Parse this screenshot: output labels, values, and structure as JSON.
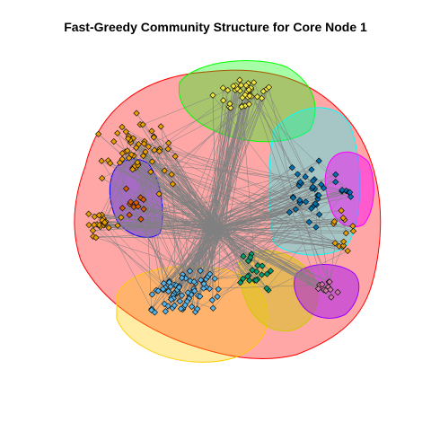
{
  "title": "Fast-Greedy Community Structure for Core Node 1",
  "chart_data": {
    "type": "network",
    "layout": "force-directed",
    "edge_color": "#808080",
    "node_border_color": "#000000",
    "communities": [
      {
        "id": "orange",
        "hull_fill": "#FF0000",
        "node_fill": "#E69F00"
      },
      {
        "id": "green",
        "hull_fill": "#00FF00",
        "node_fill": "#F0E442"
      },
      {
        "id": "cyan",
        "hull_fill": "#00FFFF",
        "node_fill": "#0072B2"
      },
      {
        "id": "magenta",
        "hull_fill": "#FF00FF",
        "node_fill": "#0072B2"
      },
      {
        "id": "blue",
        "hull_fill": "#0000FF",
        "node_fill": "#D55E00"
      },
      {
        "id": "lightblue",
        "hull_fill": "#FFCC00",
        "node_fill": "#56B4E9"
      },
      {
        "id": "olive",
        "hull_fill": "#CCCC00",
        "node_fill": "#009E73"
      },
      {
        "id": "purple",
        "hull_fill": "#9900FF",
        "node_fill": "#CC79A7"
      }
    ],
    "core_node": "1"
  }
}
